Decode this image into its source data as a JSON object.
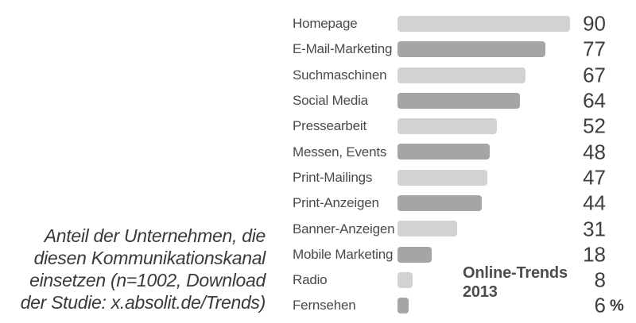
{
  "chart_data": {
    "type": "bar",
    "orientation": "horizontal",
    "title": "",
    "categories": [
      "Homepage",
      "E-Mail-Marketing",
      "Suchmaschinen",
      "Social Media",
      "Pressearbeit",
      "Messen, Events",
      "Print-Mailings",
      "Print-Anzeigen",
      "Banner-Anzeigen",
      "Mobile Marketing",
      "Radio",
      "Fernsehen"
    ],
    "values": [
      90,
      77,
      67,
      64,
      52,
      48,
      47,
      44,
      31,
      18,
      8,
      6
    ],
    "unit_suffix": "%",
    "xlim": [
      0,
      100
    ],
    "grid": false,
    "legend": "none",
    "value_labels_position": "right",
    "annotation": "Online-Trends 2013"
  },
  "caption": {
    "lines": [
      "Anteil der Unternehmen, die",
      "diesen Kommunikationskanal",
      "einsetzen (n=1002, Download",
      "der Studie: x.absolit.de/Trends)"
    ]
  },
  "annotation": {
    "line1": "Online-Trends",
    "line2": "2013"
  },
  "colors": {
    "bar_light": "#d2d2d2",
    "bar_dark": "#a5a5a5",
    "label_text": "#4a4a4a",
    "value_text": "#3f3f3f",
    "annotation_text": "#4d4d4d",
    "caption_text": "#3a3a3a",
    "background": "#ffffff"
  }
}
